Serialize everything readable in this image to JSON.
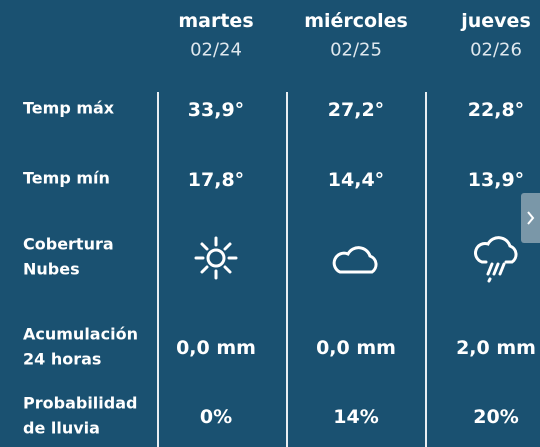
{
  "days": [
    {
      "name": "martes",
      "date": "02/24"
    },
    {
      "name": "miércoles",
      "date": "02/25"
    },
    {
      "name": "jueves",
      "date": "02/26"
    }
  ],
  "rows": [
    {
      "label": [
        "Temp máx"
      ],
      "values": [
        "33,9°",
        "27,2°",
        "22,8°"
      ]
    },
    {
      "label": [
        "Temp mín"
      ],
      "values": [
        "17,8°",
        "14,4°",
        "13,9°"
      ]
    },
    {
      "label": [
        "Cobertura",
        "Nubes"
      ]
    },
    {
      "label": [
        "Acumulación",
        "24 horas"
      ],
      "values": [
        "0,0 mm",
        "0,0 mm",
        "2,0 mm"
      ]
    },
    {
      "label": [
        "Probabilidad",
        "de lluvia"
      ],
      "values": [
        "0%",
        "14%",
        "20%"
      ]
    }
  ]
}
